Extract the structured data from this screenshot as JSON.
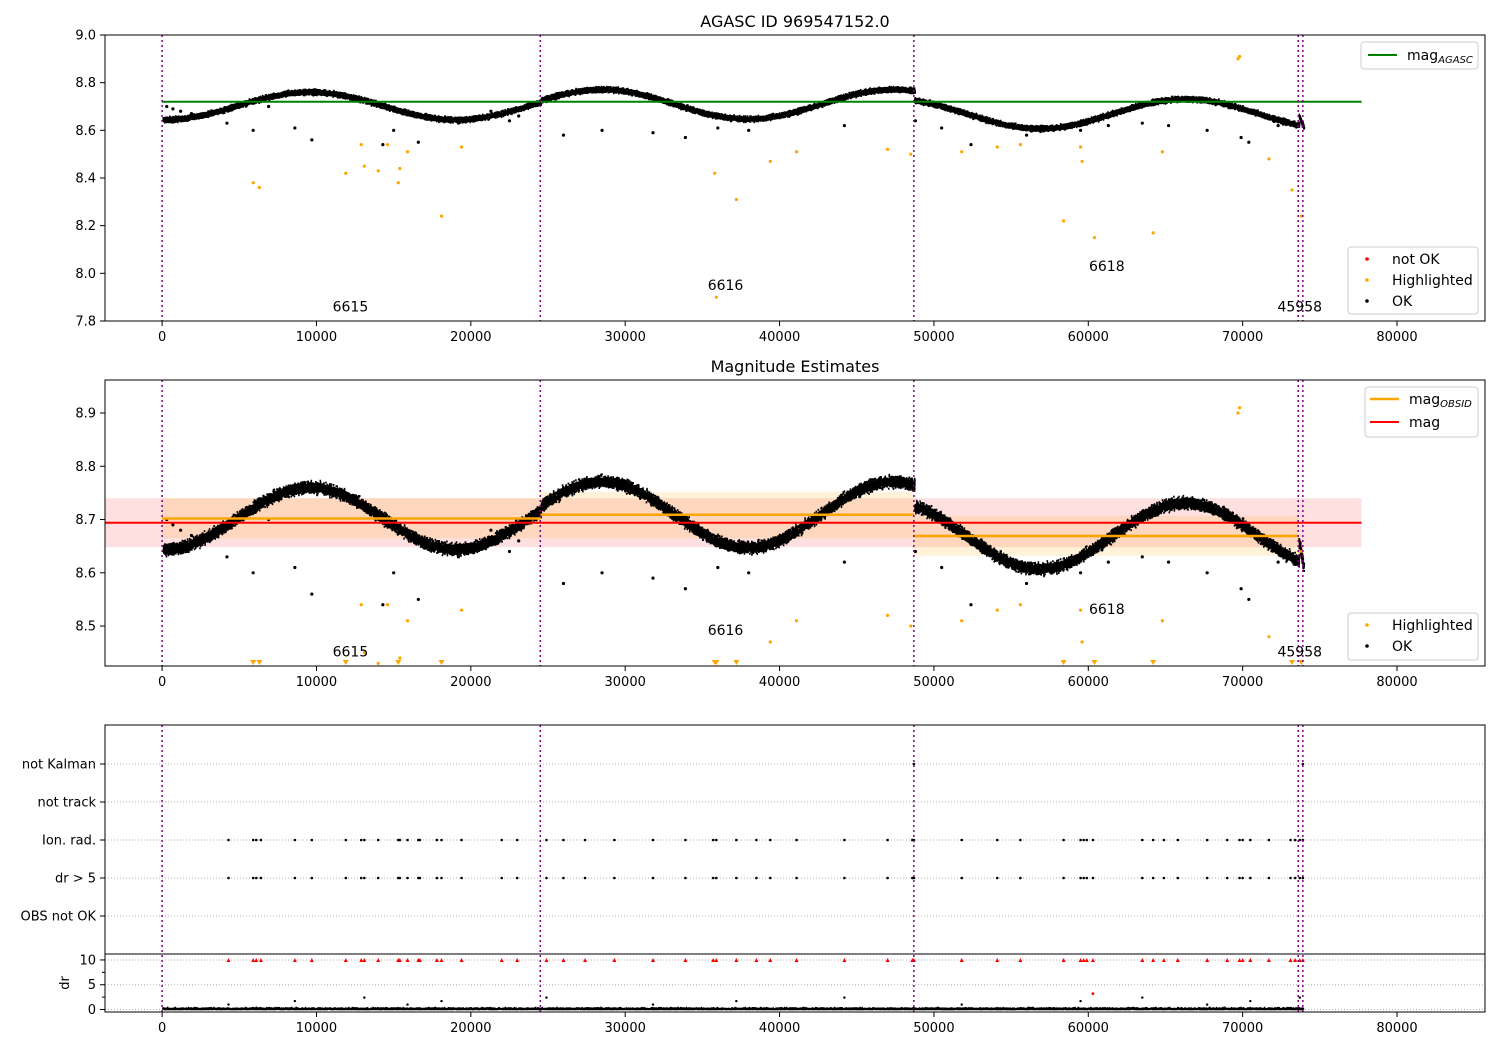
{
  "colors": {
    "ok": "#000000",
    "highlighted": "#ffa500",
    "not_ok": "#ff0000",
    "agasc_line": "#008000",
    "obsid_line": "#ffa500",
    "mag_line": "#ff0000",
    "obs_boundary": "#800080",
    "grid": "#b0b0b0"
  },
  "chart_data": [
    {
      "type": "scatter",
      "title": "AGASC ID 969547152.0",
      "xlim": [
        -3700,
        85700
      ],
      "ylim": [
        7.8,
        9.0
      ],
      "xticks": [
        0,
        10000,
        20000,
        30000,
        40000,
        50000,
        60000,
        70000,
        80000
      ],
      "yticks": [
        7.8,
        8.0,
        8.2,
        8.4,
        8.6,
        8.8,
        9.0
      ],
      "legend_top": {
        "placement": "top-right",
        "entries": [
          {
            "label": "mag",
            "sub": "AGASC"
          }
        ]
      },
      "legend_bottom": {
        "placement": "bottom-right",
        "entries": [
          "not OK",
          "Highlighted",
          "OK"
        ]
      },
      "agasc_mag": 8.72,
      "agasc_range": [
        0,
        77700
      ],
      "annotations": [
        {
          "text": "6615",
          "x": 12200,
          "y": 7.84
        },
        {
          "text": "6616",
          "x": 36500,
          "y": 7.93
        },
        {
          "text": "6618",
          "x": 61200,
          "y": 8.01
        },
        {
          "text": "45958",
          "x": 73700,
          "y": 7.84
        }
      ]
    },
    {
      "type": "scatter",
      "title": "Magnitude Estimates",
      "xlim": [
        -3700,
        85700
      ],
      "ylim": [
        8.425,
        8.962
      ],
      "xticks": [
        0,
        10000,
        20000,
        30000,
        40000,
        50000,
        60000,
        70000,
        80000
      ],
      "yticks": [
        8.5,
        8.6,
        8.7,
        8.8,
        8.9
      ],
      "legend_top": {
        "placement": "top-right",
        "entries": [
          {
            "label": "mag",
            "sub": "OBSID"
          },
          {
            "label": "mag"
          }
        ]
      },
      "legend_bottom": {
        "placement": "bottom-right",
        "entries": [
          "Highlighted",
          "OK"
        ]
      },
      "mag": 8.694,
      "mag_band": [
        8.648,
        8.74
      ],
      "mag_range": [
        -3700,
        77700
      ],
      "obsid_mags": [
        {
          "x0": 0,
          "x1": 24500,
          "mag": 8.702,
          "lo": 8.665,
          "hi": 8.74
        },
        {
          "x0": 24500,
          "x1": 48700,
          "mag": 8.709,
          "lo": 8.665,
          "hi": 8.752
        },
        {
          "x0": 48700,
          "x1": 73600,
          "mag": 8.669,
          "lo": 8.632,
          "hi": 8.707
        },
        {
          "x0": 73600,
          "x1": 73900,
          "mag": 8.64,
          "lo": 8.62,
          "hi": 8.66
        }
      ],
      "annotations": [
        {
          "text": "6615",
          "x": 12200,
          "y": 8.443
        },
        {
          "text": "6616",
          "x": 36500,
          "y": 8.483
        },
        {
          "text": "6618",
          "x": 61200,
          "y": 8.523
        },
        {
          "text": "45958",
          "x": 73700,
          "y": 8.443
        }
      ]
    },
    {
      "type": "scatter",
      "title": "",
      "xlim": [
        -3700,
        85700
      ],
      "xticks": [
        0,
        10000,
        20000,
        30000,
        40000,
        50000,
        60000,
        70000,
        80000
      ],
      "flag_rows": [
        "not Kalman",
        "not track",
        "Ion. rad.",
        "dr > 5",
        "OBS not OK"
      ],
      "ylabel": "dr",
      "dr_ylim": [
        -0.5,
        11
      ],
      "dr_yticks": [
        0,
        5,
        10
      ]
    }
  ],
  "light_curve": {
    "segments": [
      {
        "x0": 0,
        "x1": 24500,
        "mean": 8.702,
        "amp": 0.058,
        "period": 18900,
        "phase": 4800
      },
      {
        "x0": 24500,
        "x1": 48700,
        "mean": 8.709,
        "amp": 0.062,
        "period": 18900,
        "phase": 4800
      },
      {
        "x0": 48700,
        "x1": 73600,
        "mean": 8.669,
        "amp": 0.062,
        "period": 18900,
        "phase": 4800
      }
    ],
    "tail": {
      "x0": 73600,
      "x1": 73900,
      "y0": 8.66,
      "y1": 8.61
    },
    "outliers_ok": [
      {
        "x": 300,
        "y": 8.7
      },
      {
        "x": 700,
        "y": 8.69
      },
      {
        "x": 1200,
        "y": 8.68
      },
      {
        "x": 1900,
        "y": 8.67
      },
      {
        "x": 4200,
        "y": 8.63
      },
      {
        "x": 5900,
        "y": 8.6
      },
      {
        "x": 6900,
        "y": 8.7
      },
      {
        "x": 8600,
        "y": 8.61
      },
      {
        "x": 9700,
        "y": 8.56
      },
      {
        "x": 14300,
        "y": 8.54
      },
      {
        "x": 15000,
        "y": 8.6
      },
      {
        "x": 16600,
        "y": 8.55
      },
      {
        "x": 19200,
        "y": 8.63
      },
      {
        "x": 21300,
        "y": 8.68
      },
      {
        "x": 22500,
        "y": 8.64
      },
      {
        "x": 23100,
        "y": 8.66
      },
      {
        "x": 26000,
        "y": 8.58
      },
      {
        "x": 28500,
        "y": 8.6
      },
      {
        "x": 31800,
        "y": 8.59
      },
      {
        "x": 33900,
        "y": 8.57
      },
      {
        "x": 36000,
        "y": 8.61
      },
      {
        "x": 38000,
        "y": 8.6
      },
      {
        "x": 44200,
        "y": 8.62
      },
      {
        "x": 48800,
        "y": 8.64
      },
      {
        "x": 50500,
        "y": 8.61
      },
      {
        "x": 52400,
        "y": 8.54
      },
      {
        "x": 56000,
        "y": 8.58
      },
      {
        "x": 58300,
        "y": 8.61
      },
      {
        "x": 59500,
        "y": 8.6
      },
      {
        "x": 61300,
        "y": 8.62
      },
      {
        "x": 63500,
        "y": 8.63
      },
      {
        "x": 65200,
        "y": 8.62
      },
      {
        "x": 67700,
        "y": 8.6
      },
      {
        "x": 69900,
        "y": 8.57
      },
      {
        "x": 70400,
        "y": 8.55
      },
      {
        "x": 72300,
        "y": 8.62
      }
    ],
    "highlighted": [
      {
        "x": 5900,
        "y": 8.38
      },
      {
        "x": 6300,
        "y": 8.36
      },
      {
        "x": 11900,
        "y": 8.42
      },
      {
        "x": 12900,
        "y": 8.54
      },
      {
        "x": 13100,
        "y": 8.45
      },
      {
        "x": 14000,
        "y": 8.43
      },
      {
        "x": 14600,
        "y": 8.54
      },
      {
        "x": 15300,
        "y": 8.38
      },
      {
        "x": 15400,
        "y": 8.44
      },
      {
        "x": 15900,
        "y": 8.51
      },
      {
        "x": 18100,
        "y": 8.24
      },
      {
        "x": 19400,
        "y": 8.53
      },
      {
        "x": 35800,
        "y": 8.42
      },
      {
        "x": 35900,
        "y": 7.9
      },
      {
        "x": 37200,
        "y": 8.31
      },
      {
        "x": 39400,
        "y": 8.47
      },
      {
        "x": 41100,
        "y": 8.51
      },
      {
        "x": 47000,
        "y": 8.52
      },
      {
        "x": 48500,
        "y": 8.5
      },
      {
        "x": 51800,
        "y": 8.51
      },
      {
        "x": 54100,
        "y": 8.53
      },
      {
        "x": 55600,
        "y": 8.54
      },
      {
        "x": 58400,
        "y": 8.22
      },
      {
        "x": 59500,
        "y": 8.53
      },
      {
        "x": 59600,
        "y": 8.47
      },
      {
        "x": 60400,
        "y": 8.15
      },
      {
        "x": 64200,
        "y": 8.17
      },
      {
        "x": 64800,
        "y": 8.51
      },
      {
        "x": 69700,
        "y": 8.9
      },
      {
        "x": 69800,
        "y": 8.91
      },
      {
        "x": 71700,
        "y": 8.48
      },
      {
        "x": 73200,
        "y": 8.35
      },
      {
        "x": 73800,
        "y": 8.24
      }
    ],
    "flag_x": [
      4300,
      5900,
      6100,
      6400,
      8600,
      9700,
      11900,
      12900,
      13100,
      14000,
      15300,
      15400,
      15900,
      16600,
      16700,
      17800,
      18100,
      19400,
      22000,
      23000,
      24900,
      26000,
      27400,
      29300,
      31800,
      33900,
      35700,
      35900,
      37200,
      38500,
      39400,
      41100,
      44200,
      47000,
      48600,
      48700,
      51800,
      54100,
      55600,
      58400,
      59500,
      59700,
      59900,
      60300,
      63500,
      64200,
      64900,
      65800,
      67700,
      69000,
      69800,
      70000,
      70500,
      71700,
      73100,
      73400,
      73700,
      73900
    ],
    "obs_boundaries": [
      0,
      24500,
      48700,
      73600,
      73900
    ]
  }
}
